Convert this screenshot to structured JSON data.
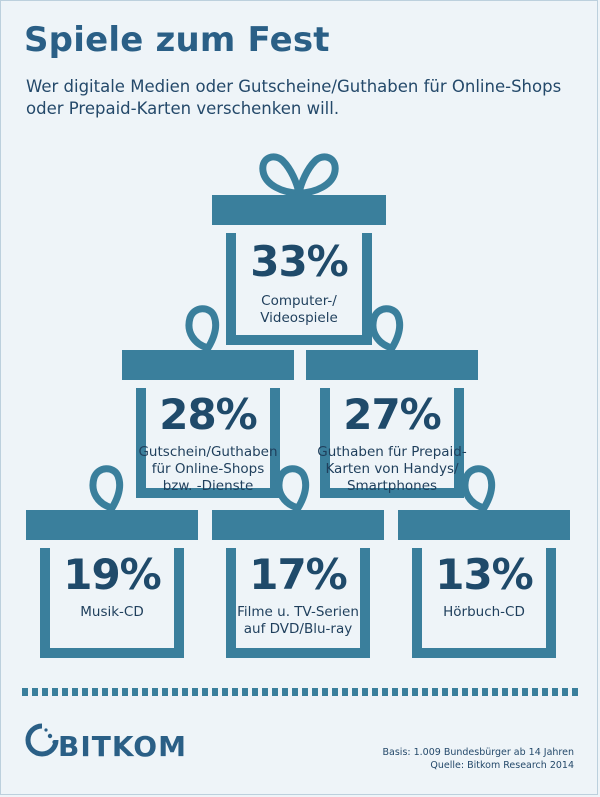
{
  "title": "Spiele zum Fest",
  "subtitle": "Wer digitale Medien oder Gutscheine/Guthaben für Online-Shops oder Prepaid-Karten verschenken will.",
  "colors": {
    "ribbon": "#3a7f9c",
    "title": "#2a5f86",
    "text": "#1f4a6a",
    "background": "#eef4f8"
  },
  "chart_data": {
    "type": "bar",
    "categories": [
      "Computer-/ Videospiele",
      "Gutschein/Guthaben für Online-Shops bzw. -Dienste",
      "Guthaben für Prepaid-Karten von Handys/ Smartphones",
      "Musik-CD",
      "Filme u. TV-Serien auf DVD/Blu-ray",
      "Hörbuch-CD"
    ],
    "values": [
      33,
      28,
      27,
      19,
      17,
      13
    ],
    "labels": [
      "33%",
      "28%",
      "27%",
      "19%",
      "17%",
      "13%"
    ],
    "category_lines": [
      "Computer-/\nVideospiele",
      "Gutschein/Guthaben\nfür Online-Shops\nbzw. -Dienste",
      "Guthaben für Prepaid-\nKarten von Handys/\nSmartphones",
      "Musik-CD",
      "Filme u. TV-Serien\nauf DVD/Blu-ray",
      "Hörbuch-CD"
    ],
    "unit": "%"
  },
  "logo": {
    "name": "BITKOM"
  },
  "footer": {
    "basis": "Basis: 1.009 Bundesbürger ab 14 Jahren",
    "source": "Quelle: Bitkom Research 2014"
  }
}
